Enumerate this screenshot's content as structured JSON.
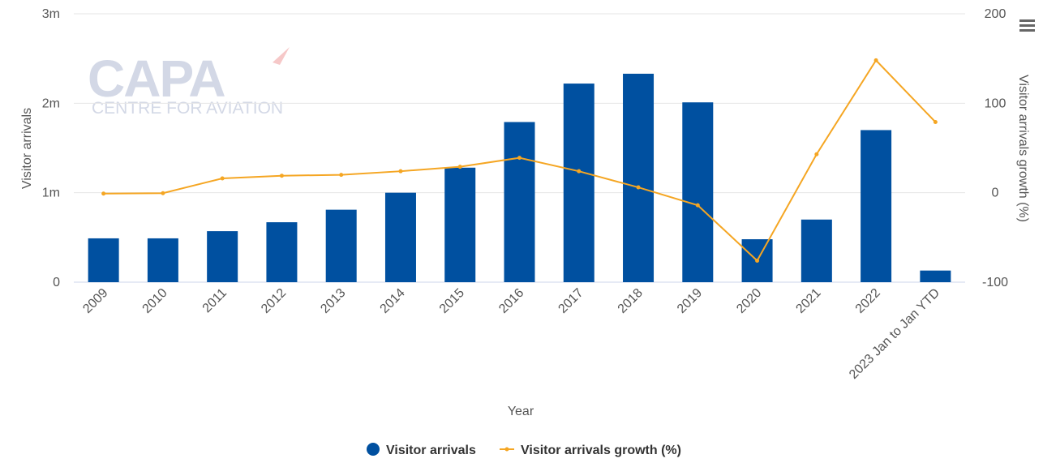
{
  "chart_data": {
    "type": "bar",
    "categories": [
      "2009",
      "2010",
      "2011",
      "2012",
      "2013",
      "2014",
      "2015",
      "2016",
      "2017",
      "2018",
      "2019",
      "2020",
      "2021",
      "2022",
      "2023 Jan to Jan YTD"
    ],
    "series": [
      {
        "name": "Visitor arrivals",
        "type": "bar",
        "axis": "left",
        "color": "#0050a0",
        "values": [
          490000,
          490000,
          570000,
          670000,
          810000,
          1000000,
          1280000,
          1790000,
          2220000,
          2330000,
          2010000,
          480000,
          700000,
          1700000,
          130000
        ]
      },
      {
        "name": "Visitor arrivals growth (%)",
        "type": "line",
        "axis": "right",
        "color": "#f5a623",
        "values": [
          -1,
          -0.5,
          16,
          19,
          20,
          24,
          29,
          39,
          24,
          6,
          -14,
          -76,
          43,
          148,
          79
        ]
      }
    ],
    "xlabel": "Year",
    "ylabel": "Visitor arrivals",
    "y2label": "Visitor arrivals growth (%)",
    "ylim": [
      0,
      3000000
    ],
    "y2lim": [
      -100,
      200
    ],
    "yticks": [
      {
        "value": 0,
        "label": "0"
      },
      {
        "value": 1000000,
        "label": "1m"
      },
      {
        "value": 2000000,
        "label": "2m"
      },
      {
        "value": 3000000,
        "label": "3m"
      }
    ],
    "y2ticks": [
      {
        "value": -100,
        "label": "-100"
      },
      {
        "value": 0,
        "label": "0"
      },
      {
        "value": 100,
        "label": "100"
      },
      {
        "value": 200,
        "label": "200"
      }
    ],
    "grid": true,
    "legend": "bottom-center"
  },
  "watermark": {
    "main": "CAPA",
    "sub": "CENTRE FOR AVIATION"
  },
  "menu": {
    "icon": "hamburger-menu-icon"
  }
}
